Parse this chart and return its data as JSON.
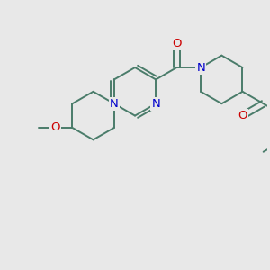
{
  "bg_color": "#e8e8e8",
  "bond_color": "#4a7c6a",
  "N_color": "#0000cc",
  "O_color": "#cc0000",
  "font_size": 9.5,
  "bond_width": 1.4,
  "figsize": [
    3.0,
    3.0
  ],
  "dpi": 100,
  "xlim": [
    -1.5,
    9.5
  ],
  "ylim": [
    -5.5,
    4.5
  ]
}
